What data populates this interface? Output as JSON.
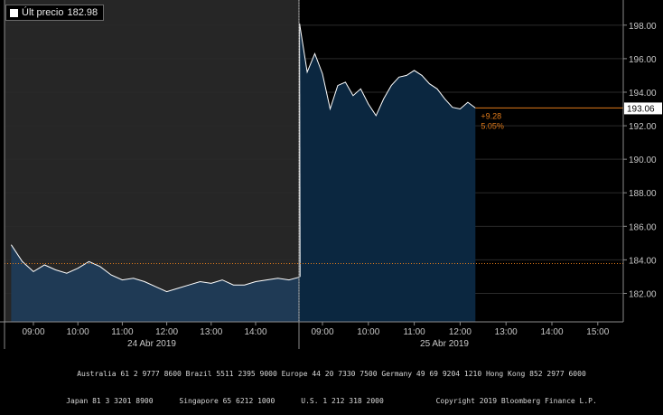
{
  "legend": {
    "label": "Últ precio",
    "value": "182.98"
  },
  "price_tag": "193.06",
  "change": {
    "abs": "+9.28",
    "pct": "5.05%"
  },
  "colors": {
    "day1_bg": "#262626",
    "day2_bg": "#000000",
    "area_fill": "#0b2740",
    "area_fill_day1": "#1f3a55",
    "line": "#ffffff",
    "ref_line": "#e07a1a",
    "tag_bg": "#ffffff",
    "tag_text": "#000000",
    "change_text": "#e07a1a",
    "grid": "#2a2a2a"
  },
  "chart_data": {
    "type": "area",
    "ylim": [
      180.3,
      199.5
    ],
    "yticks": [
      182,
      184,
      186,
      188,
      190,
      192,
      194,
      196,
      198
    ],
    "reference_value": 183.78,
    "x_time_labels": [
      "09:00",
      "10:00",
      "11:00",
      "12:00",
      "13:00",
      "14:00",
      "09:00",
      "10:00",
      "11:00",
      "12:00",
      "13:00",
      "14:00",
      "15:00"
    ],
    "date_labels": [
      "24 Abr 2019",
      "25 Abr 2019"
    ],
    "series": [
      {
        "session": "24 Abr 2019",
        "x": [
          "08:30",
          "08:45",
          "09:00",
          "09:15",
          "09:30",
          "09:45",
          "10:00",
          "10:15",
          "10:30",
          "10:45",
          "11:00",
          "11:15",
          "11:30",
          "11:45",
          "12:00",
          "12:15",
          "12:30",
          "12:45",
          "13:00",
          "13:15",
          "13:30",
          "13:45",
          "14:00",
          "14:15",
          "14:30",
          "14:45",
          "15:00"
        ],
        "values": [
          184.9,
          183.9,
          183.3,
          183.7,
          183.4,
          183.2,
          183.5,
          183.9,
          183.6,
          183.1,
          182.8,
          182.9,
          182.7,
          182.4,
          182.1,
          182.3,
          182.5,
          182.7,
          182.6,
          182.8,
          182.5,
          182.5,
          182.7,
          182.8,
          182.9,
          182.8,
          182.98
        ]
      },
      {
        "session": "25 Abr 2019",
        "x": [
          "08:30",
          "08:40",
          "08:50",
          "09:00",
          "09:10",
          "09:20",
          "09:30",
          "09:40",
          "09:50",
          "10:00",
          "10:10",
          "10:20",
          "10:30",
          "10:40",
          "10:50",
          "11:00",
          "11:10",
          "11:20",
          "11:30",
          "11:40",
          "11:50",
          "12:00",
          "12:10",
          "12:20"
        ],
        "values": [
          198.1,
          195.2,
          196.3,
          195.1,
          193.0,
          194.4,
          194.6,
          193.8,
          194.2,
          193.3,
          192.6,
          193.6,
          194.4,
          194.9,
          195.0,
          195.3,
          195.0,
          194.5,
          194.2,
          193.6,
          193.1,
          193.0,
          193.4,
          193.06
        ]
      }
    ]
  },
  "footer": {
    "line1": "Australia 61 2 9777 8600 Brazil 5511 2395 9000 Europe 44 20 7330 7500 Germany 49 69 9204 1210 Hong Kong 852 2977 6000",
    "line2": "Japan 81 3 3201 8900      Singapore 65 6212 1000      U.S. 1 212 318 2000            Copyright 2019 Bloomberg Finance L.P."
  }
}
